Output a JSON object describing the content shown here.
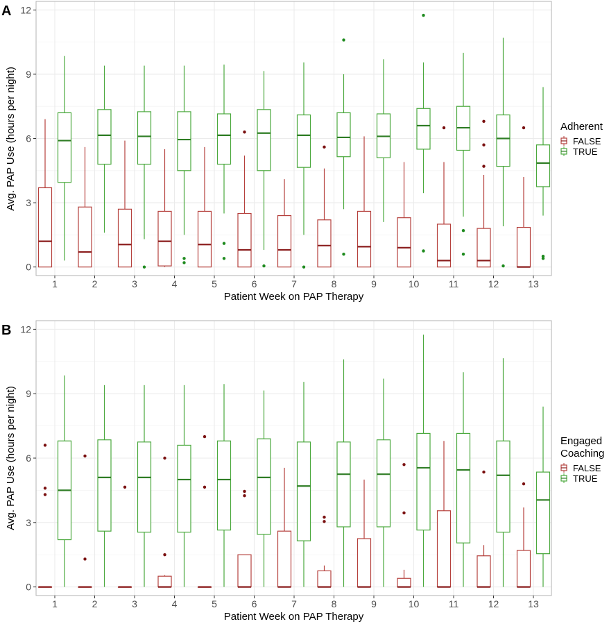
{
  "colors": {
    "false": "#b5403c",
    "true": "#4aa83c",
    "median_false": "#8b1e1e",
    "median_true": "#2f7d25",
    "outlier_false": "#7a1010",
    "outlier_true": "#1e8a1e",
    "grid": "#ebebeb",
    "panel_border": "#b3b3b3"
  },
  "chart_data": [
    {
      "type": "box",
      "panel_label": "A",
      "xlabel": "Patient Week on PAP Therapy",
      "ylabel": "Avg. PAP Use (hours per night)",
      "ylim": [
        -0.4,
        12.4
      ],
      "yticks": [
        0,
        3,
        6,
        9,
        12
      ],
      "categories": [
        "1",
        "2",
        "3",
        "4",
        "5",
        "6",
        "7",
        "8",
        "9",
        "10",
        "11",
        "12",
        "13"
      ],
      "legend": {
        "title": [
          "Adherent"
        ],
        "entries": [
          "FALSE",
          "TRUE"
        ]
      },
      "series": [
        {
          "name": "FALSE",
          "boxes": [
            {
              "min": 0,
              "q1": 0,
              "median": 1.2,
              "q3": 3.7,
              "max": 6.9,
              "outliers": []
            },
            {
              "min": 0,
              "q1": 0,
              "median": 0.7,
              "q3": 2.8,
              "max": 5.6,
              "outliers": []
            },
            {
              "min": 0,
              "q1": 0,
              "median": 1.05,
              "q3": 2.7,
              "max": 5.9,
              "outliers": []
            },
            {
              "min": 0,
              "q1": 0.05,
              "median": 1.2,
              "q3": 2.6,
              "max": 5.5,
              "outliers": []
            },
            {
              "min": 0,
              "q1": 0,
              "median": 1.05,
              "q3": 2.6,
              "max": 5.6,
              "outliers": []
            },
            {
              "min": 0,
              "q1": 0,
              "median": 0.8,
              "q3": 2.5,
              "max": 5.2,
              "outliers": [
                6.3
              ]
            },
            {
              "min": 0,
              "q1": 0,
              "median": 0.8,
              "q3": 2.4,
              "max": 4.1,
              "outliers": []
            },
            {
              "min": 0,
              "q1": 0,
              "median": 1.0,
              "q3": 2.2,
              "max": 4.6,
              "outliers": [
                5.6
              ]
            },
            {
              "min": 0,
              "q1": 0,
              "median": 0.95,
              "q3": 2.6,
              "max": 6.1,
              "outliers": []
            },
            {
              "min": 0,
              "q1": 0,
              "median": 0.9,
              "q3": 2.3,
              "max": 4.9,
              "outliers": []
            },
            {
              "min": 0,
              "q1": 0,
              "median": 0.3,
              "q3": 2.0,
              "max": 4.9,
              "outliers": [
                6.5
              ]
            },
            {
              "min": 0,
              "q1": 0,
              "median": 0.3,
              "q3": 1.8,
              "max": 4.3,
              "outliers": [
                4.7,
                5.7,
                6.8
              ]
            },
            {
              "min": 0,
              "q1": 0,
              "median": 0,
              "q3": 1.85,
              "max": 4.2,
              "outliers": [
                6.5
              ]
            }
          ]
        },
        {
          "name": "TRUE",
          "boxes": [
            {
              "min": 0.3,
              "q1": 3.95,
              "median": 5.9,
              "q3": 7.2,
              "max": 9.85,
              "outliers": []
            },
            {
              "min": 1.6,
              "q1": 4.8,
              "median": 6.15,
              "q3": 7.35,
              "max": 9.4,
              "outliers": []
            },
            {
              "min": 1.3,
              "q1": 4.8,
              "median": 6.1,
              "q3": 7.25,
              "max": 9.4,
              "outliers": [
                0
              ]
            },
            {
              "min": 1.5,
              "q1": 4.5,
              "median": 5.95,
              "q3": 7.25,
              "max": 9.4,
              "outliers": [
                0.2,
                0.4
              ]
            },
            {
              "min": 2.5,
              "q1": 4.8,
              "median": 6.15,
              "q3": 7.15,
              "max": 9.45,
              "outliers": [
                0.4,
                1.1
              ]
            },
            {
              "min": 0.8,
              "q1": 4.5,
              "median": 6.25,
              "q3": 7.35,
              "max": 9.15,
              "outliers": [
                0.05
              ]
            },
            {
              "min": 1.5,
              "q1": 4.65,
              "median": 6.15,
              "q3": 7.1,
              "max": 9.55,
              "outliers": [
                0
              ]
            },
            {
              "min": 2.7,
              "q1": 5.15,
              "median": 6.05,
              "q3": 7.2,
              "max": 9.0,
              "outliers": [
                0.6,
                10.6
              ]
            },
            {
              "min": 2.1,
              "q1": 5.1,
              "median": 6.1,
              "q3": 7.15,
              "max": 9.7,
              "outliers": []
            },
            {
              "min": 3.45,
              "q1": 5.5,
              "median": 6.6,
              "q3": 7.4,
              "max": 9.55,
              "outliers": [
                0.75,
                11.75
              ]
            },
            {
              "min": 2.35,
              "q1": 5.45,
              "median": 6.5,
              "q3": 7.5,
              "max": 10.0,
              "outliers": [
                0.6,
                1.7
              ]
            },
            {
              "min": 1.9,
              "q1": 4.7,
              "median": 6.0,
              "q3": 7.1,
              "max": 10.7,
              "outliers": [
                0.05
              ]
            },
            {
              "min": 2.4,
              "q1": 3.75,
              "median": 4.85,
              "q3": 5.7,
              "max": 8.4,
              "outliers": [
                0.4,
                0.5
              ]
            }
          ]
        }
      ]
    },
    {
      "type": "box",
      "panel_label": "B",
      "xlabel": "Patient Week on PAP Therapy",
      "ylabel": "Avg. PAP Use (hours per night)",
      "ylim": [
        -0.4,
        12.4
      ],
      "yticks": [
        0,
        3,
        6,
        9,
        12
      ],
      "categories": [
        "1",
        "2",
        "3",
        "4",
        "5",
        "6",
        "7",
        "8",
        "9",
        "10",
        "11",
        "12",
        "13"
      ],
      "legend": {
        "title": [
          "Engaged",
          "Coaching"
        ],
        "entries": [
          "FALSE",
          "TRUE"
        ]
      },
      "series": [
        {
          "name": "FALSE",
          "boxes": [
            {
              "min": 0,
              "q1": 0,
              "median": 0,
              "q3": 0,
              "max": 0,
              "outliers": [
                4.3,
                4.6,
                6.6
              ]
            },
            {
              "min": 0,
              "q1": 0,
              "median": 0,
              "q3": 0,
              "max": 0,
              "outliers": [
                1.3,
                6.1
              ]
            },
            {
              "min": 0,
              "q1": 0,
              "median": 0,
              "q3": 0,
              "max": 0,
              "outliers": [
                4.65
              ]
            },
            {
              "min": 0,
              "q1": 0,
              "median": 0,
              "q3": 0.5,
              "max": 0.55,
              "outliers": [
                1.5,
                6.0
              ]
            },
            {
              "min": 0,
              "q1": 0,
              "median": 0,
              "q3": 0,
              "max": 0,
              "outliers": [
                4.65,
                7.0
              ]
            },
            {
              "min": 0,
              "q1": 0,
              "median": 0,
              "q3": 1.5,
              "max": 1.5,
              "outliers": [
                4.25,
                4.45
              ]
            },
            {
              "min": 0,
              "q1": 0,
              "median": 0,
              "q3": 2.6,
              "max": 5.55,
              "outliers": []
            },
            {
              "min": 0,
              "q1": 0,
              "median": 0,
              "q3": 0.75,
              "max": 1.0,
              "outliers": [
                3.05,
                3.25
              ]
            },
            {
              "min": 0,
              "q1": 0,
              "median": 0,
              "q3": 2.25,
              "max": 5.0,
              "outliers": []
            },
            {
              "min": 0,
              "q1": 0,
              "median": 0,
              "q3": 0.4,
              "max": 0.8,
              "outliers": [
                3.45,
                5.7
              ]
            },
            {
              "min": 0,
              "q1": 0,
              "median": 0,
              "q3": 3.55,
              "max": 6.8,
              "outliers": []
            },
            {
              "min": 0,
              "q1": 0,
              "median": 0,
              "q3": 1.45,
              "max": 1.95,
              "outliers": [
                5.35
              ]
            },
            {
              "min": 0,
              "q1": 0,
              "median": 0,
              "q3": 1.7,
              "max": 3.7,
              "outliers": [
                4.8
              ]
            }
          ]
        },
        {
          "name": "TRUE",
          "boxes": [
            {
              "min": 0,
              "q1": 2.2,
              "median": 4.5,
              "q3": 6.8,
              "max": 9.85,
              "outliers": []
            },
            {
              "min": 0,
              "q1": 2.6,
              "median": 5.1,
              "q3": 6.85,
              "max": 9.4,
              "outliers": []
            },
            {
              "min": 0,
              "q1": 2.55,
              "median": 5.1,
              "q3": 6.75,
              "max": 9.4,
              "outliers": []
            },
            {
              "min": 0,
              "q1": 2.55,
              "median": 5.0,
              "q3": 6.6,
              "max": 9.4,
              "outliers": []
            },
            {
              "min": 0,
              "q1": 2.65,
              "median": 5.0,
              "q3": 6.8,
              "max": 9.45,
              "outliers": []
            },
            {
              "min": 0,
              "q1": 2.45,
              "median": 5.1,
              "q3": 6.9,
              "max": 9.15,
              "outliers": []
            },
            {
              "min": 0,
              "q1": 2.15,
              "median": 4.7,
              "q3": 6.75,
              "max": 9.55,
              "outliers": []
            },
            {
              "min": 0,
              "q1": 2.8,
              "median": 5.25,
              "q3": 6.75,
              "max": 10.6,
              "outliers": []
            },
            {
              "min": 0,
              "q1": 2.8,
              "median": 5.25,
              "q3": 6.85,
              "max": 9.7,
              "outliers": []
            },
            {
              "min": 0,
              "q1": 2.65,
              "median": 5.55,
              "q3": 7.15,
              "max": 11.75,
              "outliers": []
            },
            {
              "min": 0,
              "q1": 2.05,
              "median": 5.45,
              "q3": 7.15,
              "max": 10.0,
              "outliers": []
            },
            {
              "min": 0,
              "q1": 2.55,
              "median": 5.2,
              "q3": 6.8,
              "max": 10.65,
              "outliers": []
            },
            {
              "min": 0,
              "q1": 1.55,
              "median": 4.05,
              "q3": 5.35,
              "max": 8.4,
              "outliers": []
            }
          ]
        }
      ]
    }
  ]
}
